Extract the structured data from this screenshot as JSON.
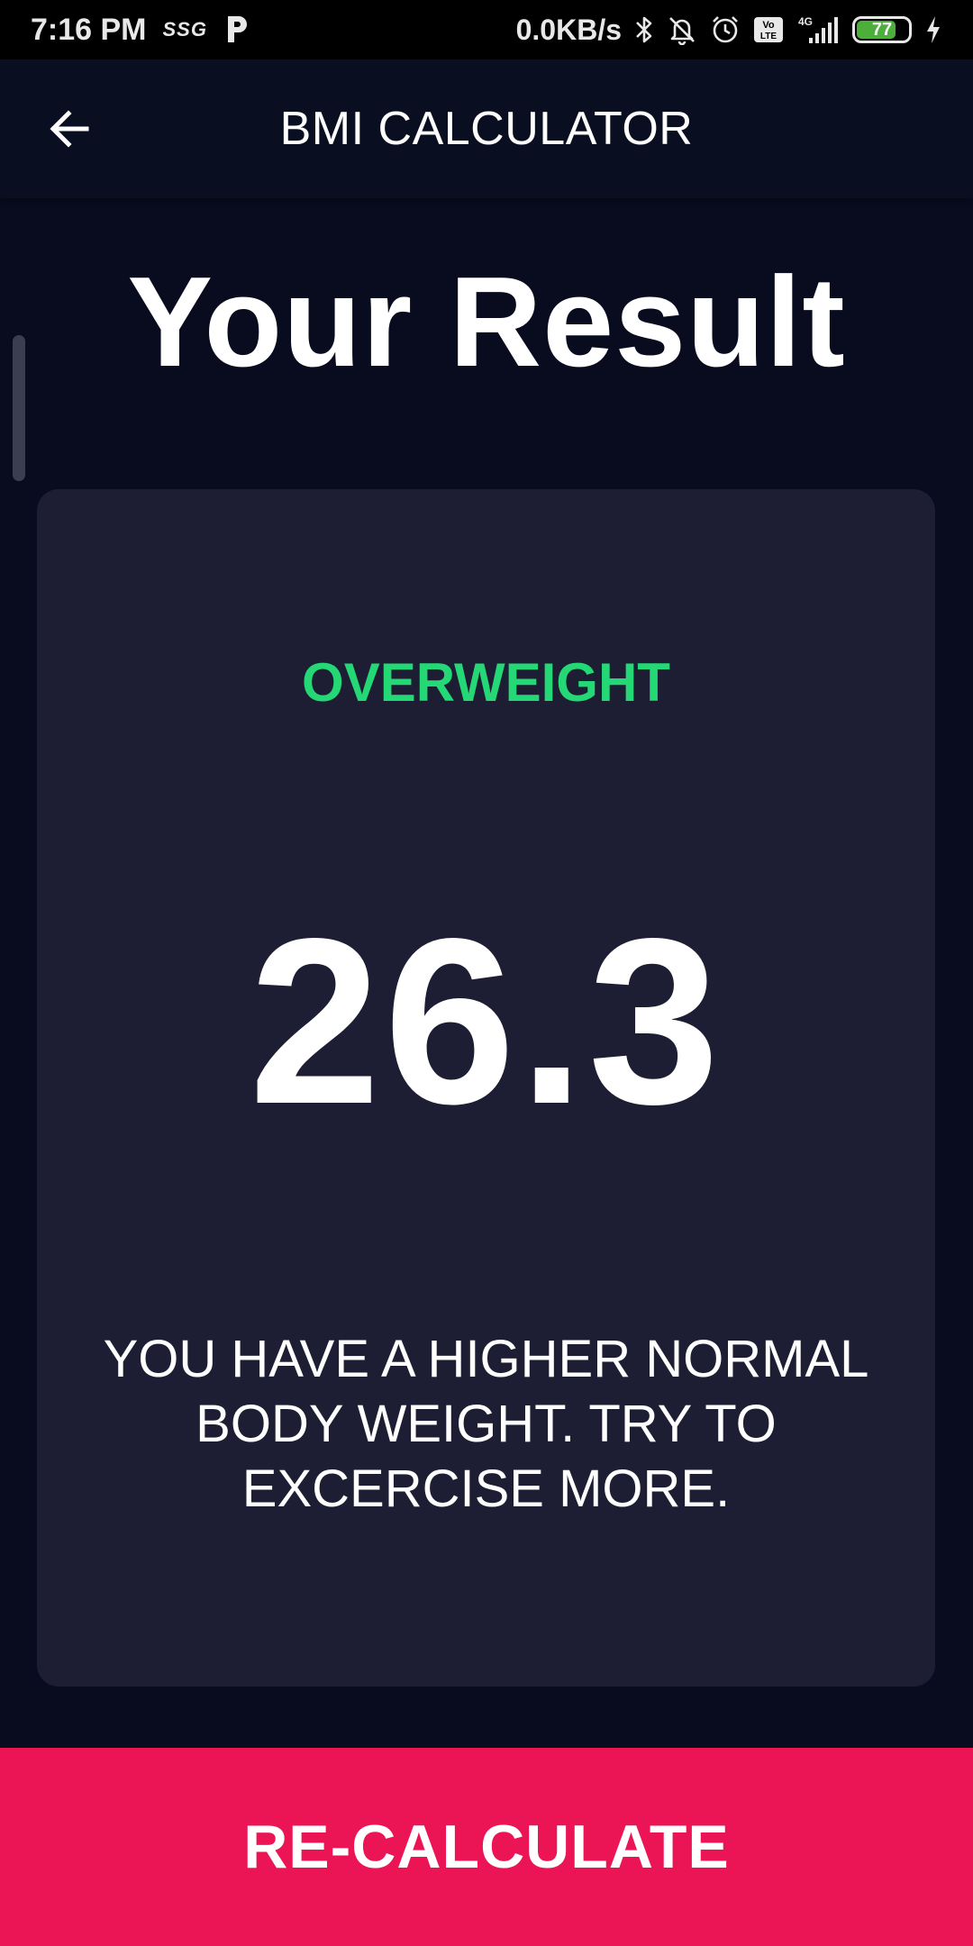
{
  "status_bar": {
    "time": "7:16 PM",
    "carrier": "SSG",
    "network_speed": "0.0KB/s",
    "network_type": "4G",
    "volte": "Vo LTE",
    "battery_level": "77",
    "battery_color": "#4caf3a",
    "icons": [
      "p-app-icon",
      "bluetooth-icon",
      "mute-icon",
      "alarm-icon",
      "volte-icon",
      "signal-icon",
      "battery-icon",
      "charging-icon"
    ]
  },
  "app_bar": {
    "title": "BMI CALCULATOR",
    "back_icon": "arrow-left-icon"
  },
  "main": {
    "heading": "Your Result",
    "result": {
      "category": "OVERWEIGHT",
      "category_color": "#24d876",
      "bmi": "26.3",
      "advice": "YOU HAVE A HIGHER NORMAL BODY WEIGHT. TRY TO EXCERCISE MORE."
    }
  },
  "bottom_button": {
    "label": "RE-CALCULATE",
    "color": "#eb1555"
  }
}
